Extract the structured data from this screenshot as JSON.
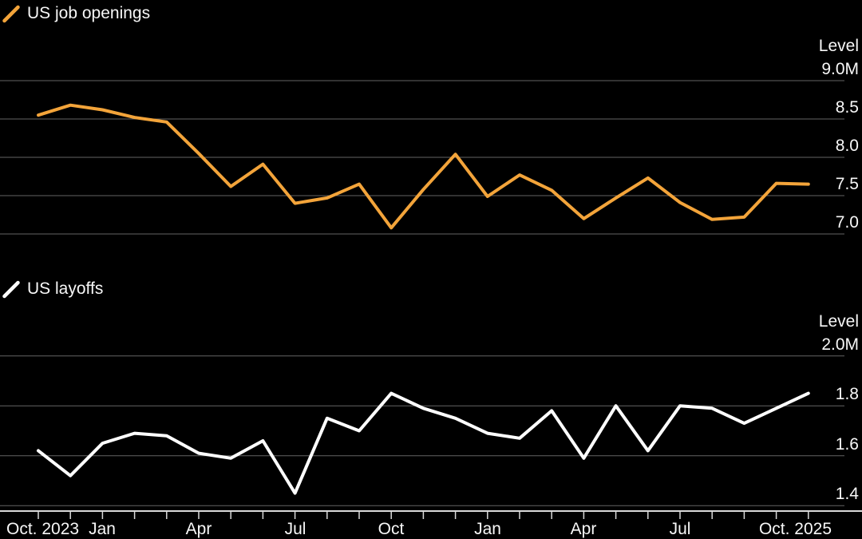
{
  "colors": {
    "background": "#000000",
    "grid": "#646464",
    "axis": "#d9d9d9",
    "text": "#f7f7f7",
    "orange_series": "#F3A43A",
    "white_series": "#FFFFFF"
  },
  "x_axis": {
    "labels": [
      "Oct. 2023",
      "Jan",
      "Apr",
      "Jul",
      "Oct",
      "Jan",
      "Apr",
      "Jul",
      "Oct. 2025"
    ]
  },
  "chart_data": [
    {
      "type": "line",
      "title": "US job openings",
      "ylabel": "Level",
      "y_unit": "M",
      "legend_label": "US job openings",
      "legend_position": "top-left",
      "grid": true,
      "ylim": [
        7.0,
        9.0
      ],
      "y_ticks": [
        9.0,
        8.5,
        8.0,
        7.5,
        7.0
      ],
      "y_tick_labels": [
        "9.0M",
        "8.5",
        "8.0",
        "7.5",
        "7.0"
      ],
      "x": [
        "Oct 2023",
        "Nov 2023",
        "Dec 2023",
        "Jan 2024",
        "Feb 2024",
        "Mar 2024",
        "Apr 2024",
        "May 2024",
        "Jun 2024",
        "Jul 2024",
        "Aug 2024",
        "Sep 2024",
        "Oct 2024",
        "Nov 2024",
        "Dec 2024",
        "Jan 2025",
        "Feb 2025",
        "Mar 2025",
        "Apr 2025",
        "May 2025",
        "Jun 2025",
        "Jul 2025",
        "Aug 2025",
        "Sep 2025",
        "Oct 2025"
      ],
      "series": [
        {
          "name": "US job openings",
          "color": "#F3A43A",
          "values": [
            8.55,
            8.68,
            8.62,
            8.52,
            8.46,
            8.05,
            7.62,
            7.91,
            7.4,
            7.47,
            7.65,
            7.08,
            7.58,
            8.04,
            7.49,
            7.77,
            7.57,
            7.2,
            7.47,
            7.73,
            7.41,
            7.19,
            7.22,
            7.66,
            7.65
          ]
        }
      ]
    },
    {
      "type": "line",
      "title": "US layoffs",
      "ylabel": "Level",
      "y_unit": "M",
      "legend_label": "US layoffs",
      "legend_position": "top-left",
      "grid": true,
      "ylim": [
        1.4,
        2.0
      ],
      "y_ticks": [
        2.0,
        1.8,
        1.6,
        1.4
      ],
      "y_tick_labels": [
        "2.0M",
        "1.8",
        "1.6",
        "1.4"
      ],
      "x": [
        "Oct 2023",
        "Nov 2023",
        "Dec 2023",
        "Jan 2024",
        "Feb 2024",
        "Mar 2024",
        "Apr 2024",
        "May 2024",
        "Jun 2024",
        "Jul 2024",
        "Aug 2024",
        "Sep 2024",
        "Oct 2024",
        "Nov 2024",
        "Dec 2024",
        "Jan 2025",
        "Feb 2025",
        "Mar 2025",
        "Apr 2025",
        "May 2025",
        "Jun 2025",
        "Jul 2025",
        "Aug 2025",
        "Sep 2025",
        "Oct 2025"
      ],
      "series": [
        {
          "name": "US layoffs",
          "color": "#FFFFFF",
          "values": [
            1.62,
            1.52,
            1.65,
            1.69,
            1.68,
            1.61,
            1.59,
            1.66,
            1.45,
            1.75,
            1.7,
            1.85,
            1.79,
            1.75,
            1.69,
            1.67,
            1.78,
            1.59,
            1.8,
            1.62,
            1.8,
            1.79,
            1.73,
            1.79,
            1.85
          ]
        }
      ]
    }
  ]
}
